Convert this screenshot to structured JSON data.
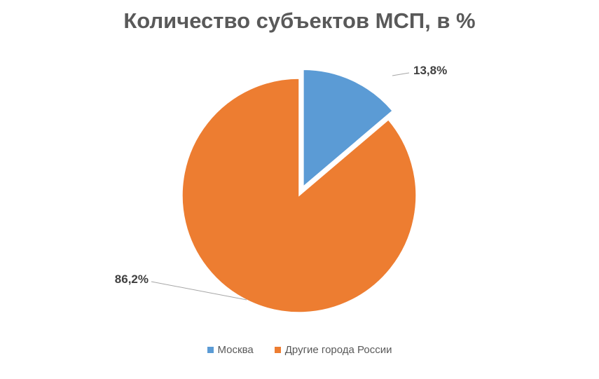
{
  "chart_data": {
    "type": "pie",
    "title": "Количество субъектов МСП, в %",
    "slices": [
      {
        "name": "Москва",
        "value": 13.8,
        "label": "13,8%",
        "color": "#5B9BD5",
        "exploded": true
      },
      {
        "name": "Другие города России",
        "value": 86.2,
        "label": "86,2%",
        "color": "#ED7D31",
        "exploded": false
      }
    ],
    "legend_position": "bottom"
  }
}
